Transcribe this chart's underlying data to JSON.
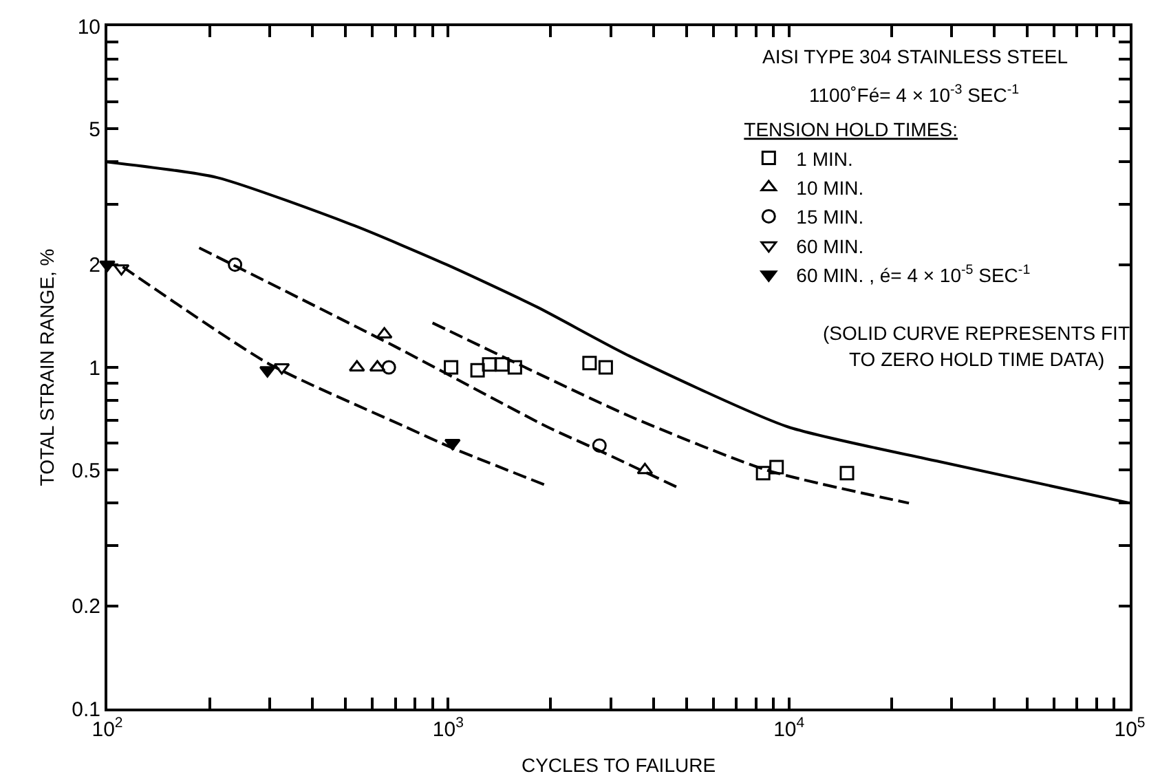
{
  "chart_data": {
    "type": "scatter",
    "xlabel": "CYCLES TO FAILURE",
    "ylabel": "TOTAL STRAIN RANGE, %",
    "log": "xy",
    "grid": false,
    "legend": "top right",
    "legend_title": "TENSION HOLD TIMES:",
    "xlim": [
      100,
      100000
    ],
    "ylim": [
      0.1,
      10
    ],
    "xticks": [
      {
        "value": 100,
        "label": "10$^{2}$"
      },
      {
        "value": 200,
        "label": null
      },
      {
        "value": 300,
        "label": null
      },
      {
        "value": 400,
        "label": null
      },
      {
        "value": 500,
        "label": null
      },
      {
        "value": 600,
        "label": null
      },
      {
        "value": 700,
        "label": null
      },
      {
        "value": 800,
        "label": null
      },
      {
        "value": 900,
        "label": null
      },
      {
        "value": 1000,
        "label": "10$^{3}$"
      },
      {
        "value": 2000,
        "label": null
      },
      {
        "value": 3000,
        "label": null
      },
      {
        "value": 4000,
        "label": null
      },
      {
        "value": 5000,
        "label": null
      },
      {
        "value": 6000,
        "label": null
      },
      {
        "value": 7000,
        "label": null
      },
      {
        "value": 8000,
        "label": null
      },
      {
        "value": 9000,
        "label": null
      },
      {
        "value": 10000,
        "label": "10$^{4}$"
      },
      {
        "value": 20000,
        "label": null
      },
      {
        "value": 30000,
        "label": null
      },
      {
        "value": 40000,
        "label": null
      },
      {
        "value": 50000,
        "label": null
      },
      {
        "value": 60000,
        "label": null
      },
      {
        "value": 70000,
        "label": null
      },
      {
        "value": 80000,
        "label": null
      },
      {
        "value": 90000,
        "label": null
      },
      {
        "value": 100000,
        "label": "10$^{5}$"
      }
    ],
    "yticks": [
      0.1,
      0.2,
      {
        "value": 0.3,
        "label": null
      },
      {
        "value": 0.4,
        "label": null
      },
      0.5,
      {
        "value": 0.6,
        "label": null
      },
      {
        "value": 0.7,
        "label": null
      },
      {
        "value": 0.8,
        "label": null
      },
      {
        "value": 0.9,
        "label": null
      },
      1,
      2,
      {
        "value": 3,
        "label": null
      },
      {
        "value": 4,
        "label": null
      },
      5,
      {
        "value": 6,
        "label": null
      },
      {
        "value": 7,
        "label": null
      },
      {
        "value": 8,
        "label": null
      },
      {
        "value": 9,
        "label": null
      },
      10
    ],
    "annotations": [
      "AISI TYPE 304 STAINLESS STEEL",
      "1100˚Fé= 4 × 10$^{-3}$ SEC$^{-1}$",
      "(SOLID CURVE REPRESENTS FIT",
      "TO ZERO HOLD TIME DATA)"
    ],
    "series": [
      {
        "type": "line",
        "color": "#000000",
        "line_style": "solid",
        "marker": "none",
        "x": [
          100,
          210,
          532,
          990,
          1830,
          3400,
          9900,
          27500,
          100000
        ],
        "values": [
          4.0,
          3.6,
          2.6,
          2.0,
          1.5,
          1.08,
          0.67,
          0.53,
          0.4
        ]
      },
      {
        "type": "line",
        "color": "#000000",
        "line_style": "dashed",
        "marker": "none",
        "x": [
          111,
          300,
          748,
          1030,
          1950
        ],
        "values": [
          1.97,
          1.02,
          0.67,
          0.58,
          0.45
        ]
      },
      {
        "type": "line",
        "color": "#000000",
        "line_style": "dashed",
        "marker": "none",
        "x": [
          186,
          700,
          1950,
          2780,
          4820
        ],
        "values": [
          2.24,
          1.15,
          0.67,
          0.57,
          0.44
        ]
      },
      {
        "type": "line",
        "color": "#000000",
        "line_style": "dashed",
        "marker": "none",
        "x": [
          900,
          3400,
          8600,
          22500
        ],
        "values": [
          1.35,
          0.72,
          0.5,
          0.4
        ]
      },
      {
        "name": "1 MIN.",
        "color": "#000000",
        "marker": "square-open",
        "x": [
          1020,
          1220,
          1320,
          1440,
          1570,
          2600,
          2900,
          8400,
          9200,
          14800
        ],
        "values": [
          1.0,
          0.98,
          1.02,
          1.02,
          1.0,
          1.03,
          1.0,
          0.49,
          0.51,
          0.49
        ]
      },
      {
        "name": "10 MIN.",
        "color": "#000000",
        "marker": "triangle-open",
        "x": [
          540,
          620,
          650,
          3780
        ],
        "values": [
          1.0,
          1.0,
          1.25,
          0.5
        ]
      },
      {
        "name": "15 MIN.",
        "color": "#000000",
        "marker": "circle-open",
        "x": [
          237,
          670,
          2780
        ],
        "values": [
          2.0,
          1.0,
          0.59
        ]
      },
      {
        "name": "60 MIN.",
        "color": "#000000",
        "marker": "triangle-down-open",
        "x": [
          110,
          325
        ],
        "values": [
          1.95,
          1.0
        ]
      },
      {
        "name": "60 MIN. , é= 4 × 10$^{-5}$ SEC$^{-1}$",
        "color": "#000000",
        "marker": "triangle-down",
        "x": [
          100,
          295,
          1030
        ],
        "values": [
          2.0,
          0.98,
          0.6
        ]
      }
    ]
  }
}
